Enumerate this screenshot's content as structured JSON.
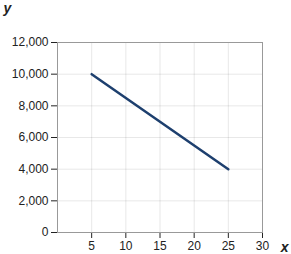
{
  "chart_data": {
    "type": "line",
    "xlabel": "x",
    "ylabel": "y",
    "x": [
      5,
      25
    ],
    "values": [
      10000,
      4000
    ],
    "color": "#1d3f6e",
    "xlim": [
      0,
      30
    ],
    "xticks": [
      5,
      10,
      15,
      20,
      25,
      30
    ],
    "ylim": [
      0,
      12000
    ],
    "yticks": [
      0,
      {
        "value": 2000,
        "label": "2,000"
      },
      {
        "value": 4000,
        "label": "4,000"
      },
      {
        "value": 6000,
        "label": "6,000"
      },
      {
        "value": 8000,
        "label": "8,000"
      },
      {
        "value": 10000,
        "label": "10,000"
      },
      {
        "value": 12000,
        "label": "12,000"
      }
    ],
    "grid": true
  }
}
